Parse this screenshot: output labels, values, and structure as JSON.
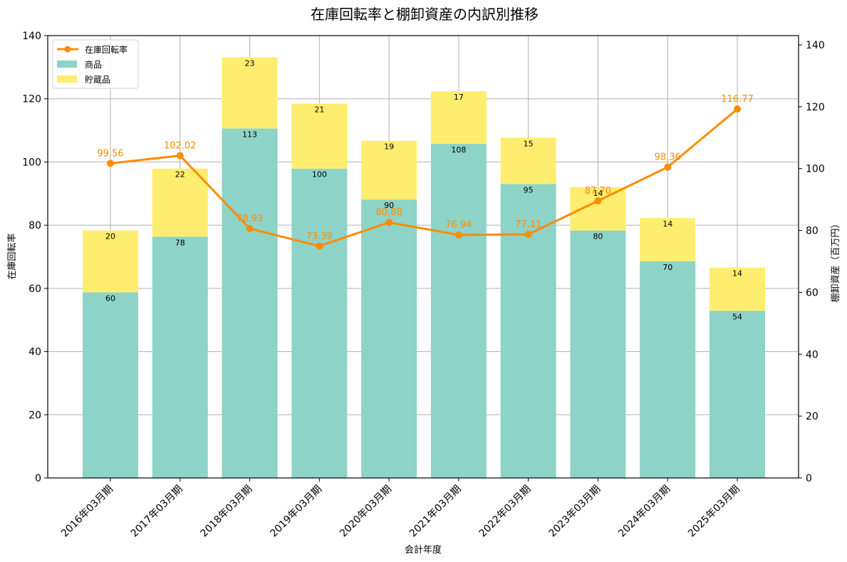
{
  "chart_data": {
    "type": "bar+line",
    "title": "在庫回転率と棚卸資産の内訳別推移",
    "xlabel": "会計年度",
    "ylabel_left": "在庫回転率",
    "ylabel_right": "棚卸資産（百万円）",
    "categories": [
      "2016年03月期",
      "2017年03月期",
      "2018年03月期",
      "2019年03月期",
      "2020年03月期",
      "2021年03月期",
      "2022年03月期",
      "2023年03月期",
      "2024年03月期",
      "2025年03月期"
    ],
    "series": [
      {
        "name": "在庫回転率",
        "type": "line",
        "axis": "left",
        "color": "#ff8c00",
        "values": [
          99.56,
          102.02,
          78.93,
          73.39,
          80.88,
          76.94,
          77.11,
          87.7,
          98.36,
          116.77
        ]
      },
      {
        "name": "商品",
        "type": "bar",
        "stacked": true,
        "axis": "right",
        "color": "#8dd3c7",
        "values": [
          60,
          78,
          113,
          100,
          90,
          108,
          95,
          80,
          70,
          54
        ]
      },
      {
        "name": "貯蔵品",
        "type": "bar",
        "stacked": true,
        "axis": "right",
        "color": "#ffed6f",
        "values": [
          20,
          22,
          23,
          21,
          19,
          17,
          15,
          14,
          14,
          14
        ]
      }
    ],
    "ylim_left": [
      0,
      140
    ],
    "ylim_right": [
      0,
      143
    ],
    "yticks_left": [
      0,
      20,
      40,
      60,
      80,
      100,
      120,
      140
    ],
    "yticks_right": [
      0,
      20,
      40,
      60,
      80,
      100,
      120,
      140
    ],
    "grid": true,
    "legend_position": "upper left"
  },
  "legend": {
    "items": [
      {
        "label": "在庫回転率",
        "kind": "line",
        "color": "#ff8c00"
      },
      {
        "label": "商品",
        "kind": "patch",
        "color": "#8dd3c7"
      },
      {
        "label": "貯蔵品",
        "kind": "patch",
        "color": "#ffed6f"
      }
    ]
  }
}
